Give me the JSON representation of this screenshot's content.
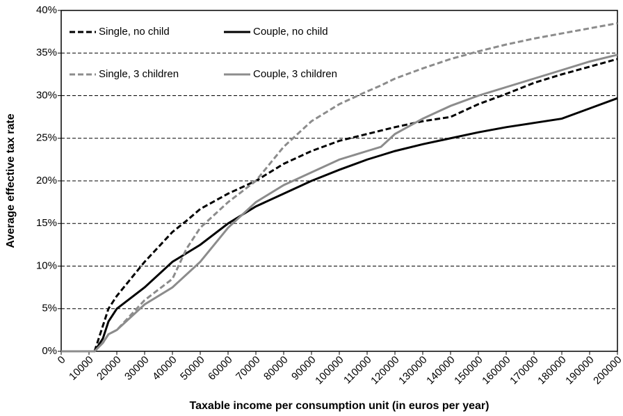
{
  "chart_data": {
    "type": "line",
    "x_label": "Taxable income per consumption unit (in euros per year)",
    "y_label": "Average effective tax rate",
    "x": [
      0,
      12000,
      15000,
      17000,
      20000,
      30000,
      40000,
      45000,
      50000,
      60000,
      70000,
      80000,
      90000,
      100000,
      110000,
      115000,
      120000,
      130000,
      140000,
      150000,
      160000,
      170000,
      180000,
      190000,
      200000
    ],
    "series": [
      {
        "name": "Single, no child",
        "color": "#000000",
        "style": "dashed",
        "values": [
          0,
          0,
          3,
          5,
          6.5,
          10.5,
          14,
          15.3,
          16.7,
          18.5,
          20,
          22,
          23.5,
          24.7,
          25.5,
          25.9,
          26.3,
          27,
          27.5,
          29,
          30.2,
          31.5,
          32.5,
          33.4,
          34.3
        ]
      },
      {
        "name": "Couple, no child",
        "color": "#000000",
        "style": "solid",
        "values": [
          0,
          0,
          1.5,
          3.5,
          5,
          7.5,
          10.5,
          11.5,
          12.5,
          15,
          17,
          18.5,
          20,
          21.3,
          22.5,
          23,
          23.5,
          24.3,
          25,
          25.7,
          26.3,
          26.8,
          27.3,
          28.5,
          29.7
        ]
      },
      {
        "name": "Single, 3 children",
        "color": "#8c8c8c",
        "style": "dashed",
        "values": [
          0,
          0,
          1,
          2,
          2.5,
          6,
          8.5,
          12,
          14.5,
          17.5,
          20,
          24,
          27,
          29,
          30.5,
          31.2,
          32,
          33.2,
          34.3,
          35.2,
          36,
          36.7,
          37.3,
          37.9,
          38.5
        ]
      },
      {
        "name": "Couple, 3 children",
        "color": "#8c8c8c",
        "style": "solid",
        "values": [
          0,
          0,
          1,
          2,
          2.5,
          5.5,
          7.5,
          9,
          10.5,
          14.5,
          17.5,
          19.5,
          21,
          22.5,
          23.5,
          24,
          25.5,
          27.3,
          28.8,
          30,
          31,
          32,
          33,
          34,
          34.8
        ]
      }
    ],
    "xlim": [
      0,
      200000
    ],
    "xticks": [
      0,
      10000,
      20000,
      30000,
      40000,
      50000,
      60000,
      70000,
      80000,
      90000,
      100000,
      110000,
      120000,
      130000,
      140000,
      150000,
      160000,
      170000,
      180000,
      190000,
      200000
    ],
    "ylim": [
      0,
      40
    ],
    "yticks": [
      {
        "value": 0,
        "label": "0%"
      },
      {
        "value": 5,
        "label": "5%"
      },
      {
        "value": 10,
        "label": "10%"
      },
      {
        "value": 15,
        "label": "15%"
      },
      {
        "value": 20,
        "label": "20%"
      },
      {
        "value": 25,
        "label": "25%"
      },
      {
        "value": 30,
        "label": "30%"
      },
      {
        "value": 35,
        "label": "35%"
      },
      {
        "value": 40,
        "label": "40%"
      }
    ],
    "grid": true
  }
}
